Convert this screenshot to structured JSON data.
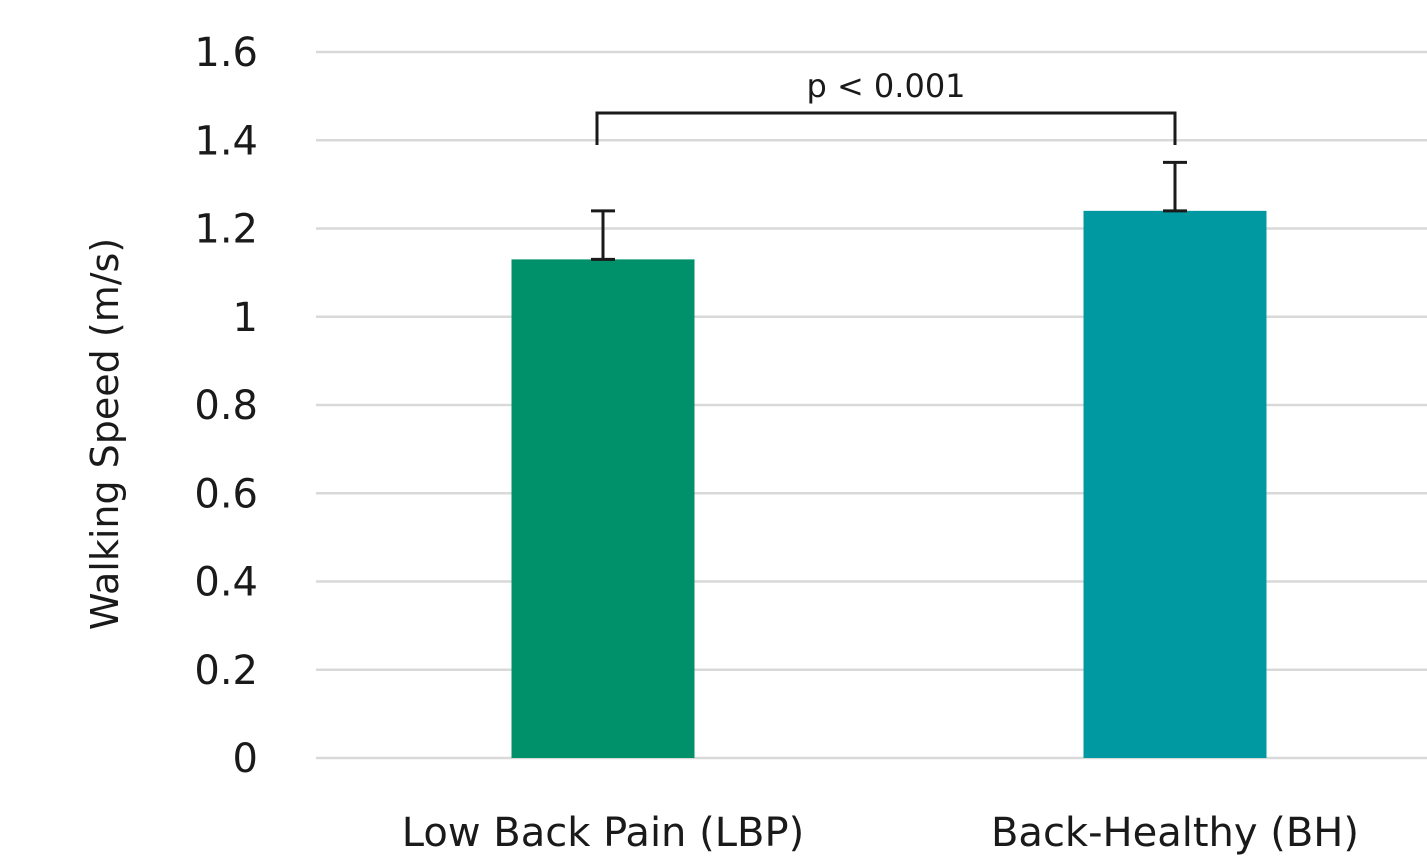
{
  "chart_data": {
    "type": "bar",
    "title": "",
    "xlabel": "",
    "ylabel": "Walking Speed (m/s)",
    "ylim": [
      0,
      1.6
    ],
    "yticks": [
      {
        "value": 0,
        "label": "0"
      },
      {
        "value": 0.2,
        "label": "0.2"
      },
      {
        "value": 0.4,
        "label": "0.4"
      },
      {
        "value": 0.6,
        "label": "0.6"
      },
      {
        "value": 0.8,
        "label": "0.8"
      },
      {
        "value": 1.0,
        "label": "1"
      },
      {
        "value": 1.2,
        "label": "1.2"
      },
      {
        "value": 1.4,
        "label": "1.4"
      },
      {
        "value": 1.6,
        "label": "1.6"
      }
    ],
    "grid": true,
    "legend": "none",
    "categories": [
      "Low Back Pain (LBP)",
      "Back-Healthy (BH)"
    ],
    "values": [
      1.13,
      1.24
    ],
    "error_upper": [
      0.11,
      0.11
    ],
    "colors": [
      "#00916a",
      "#0099a1"
    ],
    "gridline_color": "#d9d9d9",
    "significance": {
      "text": "p < 0.001",
      "between": [
        0,
        1
      ]
    }
  }
}
